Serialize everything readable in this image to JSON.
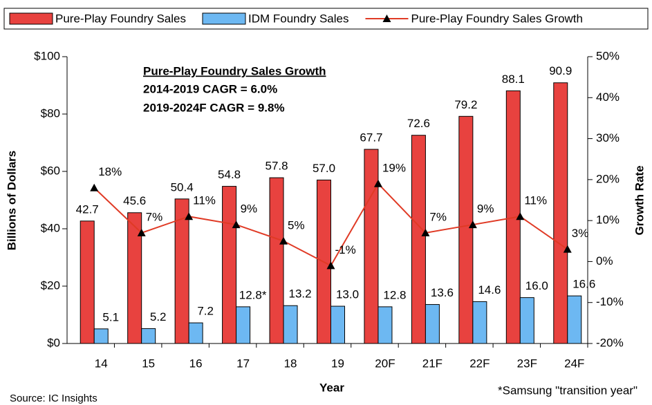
{
  "chart_data": {
    "type": "bar_line",
    "annotations": [
      "Pure-Play Foundry Sales Growth",
      "2014-2019 CAGR = 6.0%",
      "2019-2024F CAGR = 9.8%"
    ],
    "footnote": "*Samsung \"transition year\"",
    "source": "Source: IC Insights",
    "x_label": "Year",
    "y_label": "Billions of Dollars",
    "y2_label": "Growth Rate",
    "categories": [
      "14",
      "15",
      "16",
      "17",
      "18",
      "19",
      "20F",
      "21F",
      "22F",
      "23F",
      "24F"
    ],
    "series": [
      {
        "name": "Pure-Play Foundry Sales",
        "type": "bar",
        "color": "#e8423f",
        "values": [
          42.7,
          45.6,
          50.4,
          54.8,
          57.8,
          57.0,
          67.7,
          72.6,
          79.2,
          88.1,
          90.9
        ],
        "value_labels": [
          "42.7",
          "45.6",
          "50.4",
          "54.8",
          "57.8",
          "57.0",
          "67.7",
          "72.6",
          "79.2",
          "88.1",
          "90.9"
        ]
      },
      {
        "name": "IDM Foundry Sales",
        "type": "bar",
        "color": "#6db8f2",
        "values": [
          5.1,
          5.2,
          7.2,
          12.8,
          13.2,
          13.0,
          12.8,
          13.6,
          14.6,
          16.0,
          16.6
        ],
        "value_labels": [
          "5.1",
          "5.2",
          "7.2",
          "12.8*",
          "13.2",
          "13.0",
          "12.8",
          "13.6",
          "14.6",
          "16.0",
          "16.6"
        ]
      },
      {
        "name": "Pure-Play Foundry Sales Growth",
        "type": "line",
        "axis": "y2",
        "color": "#e03a25",
        "marker_color": "#000000",
        "values": [
          18,
          7,
          11,
          9,
          5,
          -1,
          19,
          7,
          9,
          11,
          3
        ],
        "value_labels": [
          "18%",
          "7%",
          "11%",
          "9%",
          "5%",
          "-1%",
          "19%",
          "7%",
          "9%",
          "11%",
          "3%"
        ]
      }
    ],
    "ylim": [
      0,
      100
    ],
    "yticks": [
      {
        "value": 0,
        "label": "$0"
      },
      {
        "value": 20,
        "label": "$20"
      },
      {
        "value": 40,
        "label": "$40"
      },
      {
        "value": 60,
        "label": "$60"
      },
      {
        "value": 80,
        "label": "$80"
      },
      {
        "value": 100,
        "label": "$100"
      }
    ],
    "y2lim": [
      -20,
      50
    ],
    "y2ticks": [
      {
        "value": -20,
        "label": "-20%"
      },
      {
        "value": -10,
        "label": "-10%"
      },
      {
        "value": 0,
        "label": "0%"
      },
      {
        "value": 10,
        "label": "10%"
      },
      {
        "value": 20,
        "label": "20%"
      },
      {
        "value": 30,
        "label": "30%"
      },
      {
        "value": 40,
        "label": "40%"
      },
      {
        "value": 50,
        "label": "50%"
      }
    ],
    "legend": "top"
  }
}
